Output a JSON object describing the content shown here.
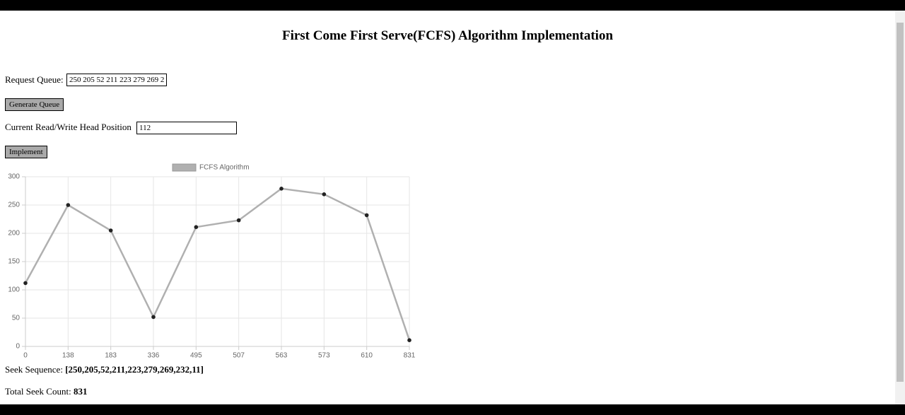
{
  "page": {
    "title": "First Come First Serve(FCFS) Algorithm Implementation",
    "request_label": "Request Queue:",
    "request_value": "250 205 52 211 223 279 269 2",
    "generate_button": "Generate Queue",
    "head_label": "Current Read/Write Head Position",
    "head_value": "112",
    "implement_button": "Implement",
    "seek_sequence_label": "Seek Sequence:",
    "seek_sequence_value": "[250,205,52,211,223,279,269,232,11]",
    "total_label": "Total Seek Count:",
    "total_value": "831"
  },
  "chart_data": {
    "type": "line",
    "categories": [
      "0",
      "138",
      "183",
      "336",
      "495",
      "507",
      "563",
      "573",
      "610",
      "831"
    ],
    "series": [
      {
        "name": "FCFS Algorithm",
        "color": "#b0b0b0",
        "values": [
          112,
          250,
          205,
          52,
          211,
          223,
          279,
          269,
          232,
          11
        ]
      }
    ],
    "ylim": [
      0,
      300
    ],
    "yticks": [
      0,
      50,
      100,
      150,
      200,
      250,
      300
    ],
    "grid": true,
    "legend": "top"
  }
}
